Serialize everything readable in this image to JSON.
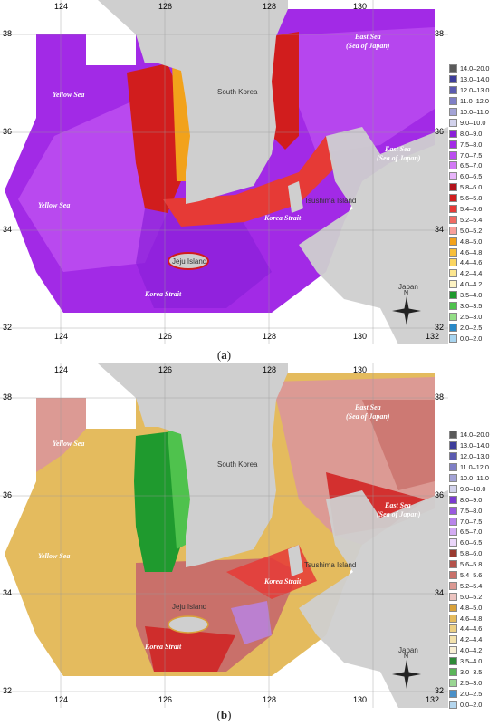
{
  "panels": [
    {
      "caption": "(a)",
      "caption_letter": "a",
      "lon_ticks": [
        "124",
        "126",
        "128",
        "130",
        "132"
      ],
      "lat_ticks": [
        "38",
        "36",
        "34",
        "32"
      ],
      "labels": {
        "yellow_sea_1": "Yellow Sea",
        "yellow_sea_2": "Yellow Sea",
        "south_korea": "South Korea",
        "east_sea_1": "East Sea",
        "east_sea_1b": "(Sea of Japan)",
        "east_sea_2": "East Sea",
        "east_sea_2b": "(Sea of Japan)",
        "tsushima": "Tsushima Island",
        "korea_strait_1": "Korea Strait",
        "jeju": "Jeju Island",
        "korea_strait_2": "Korea Strait",
        "japan": "Japan",
        "north": "N"
      },
      "legend": [
        {
          "label": "14.0–20.0",
          "color": "#5a5a5a"
        },
        {
          "label": "13.0–14.0",
          "color": "#3d3d9a"
        },
        {
          "label": "12.0–13.0",
          "color": "#5b5bb0"
        },
        {
          "label": "11.0–12.0",
          "color": "#7f7fc6"
        },
        {
          "label": "10.0–11.0",
          "color": "#a3a3d6"
        },
        {
          "label": "9.0–10.0",
          "color": "#d2d2ec"
        },
        {
          "label": "8.0–9.0",
          "color": "#8a1fd8"
        },
        {
          "label": "7.5–8.0",
          "color": "#a22ae6"
        },
        {
          "label": "7.0–7.5",
          "color": "#bb4df0"
        },
        {
          "label": "6.5–7.0",
          "color": "#d27af5"
        },
        {
          "label": "6.0–6.5",
          "color": "#e7b4fa"
        },
        {
          "label": "5.8–6.0",
          "color": "#b3121a"
        },
        {
          "label": "5.6–5.8",
          "color": "#d11d1d"
        },
        {
          "label": "5.4–5.6",
          "color": "#e63a36"
        },
        {
          "label": "5.2–5.4",
          "color": "#f06a62"
        },
        {
          "label": "5.0–5.2",
          "color": "#f8a09a"
        },
        {
          "label": "4.8–5.0",
          "color": "#f2a21b"
        },
        {
          "label": "4.6–4.8",
          "color": "#f7bf3a"
        },
        {
          "label": "4.4–4.6",
          "color": "#fad561"
        },
        {
          "label": "4.2–4.4",
          "color": "#fce68f"
        },
        {
          "label": "4.0–4.2",
          "color": "#fdf3c3"
        },
        {
          "label": "3.5–4.0",
          "color": "#1f9a2e"
        },
        {
          "label": "3.0–3.5",
          "color": "#4fc24d"
        },
        {
          "label": "2.5–3.0",
          "color": "#93de86"
        },
        {
          "label": "2.0–2.5",
          "color": "#2a8ac8"
        },
        {
          "label": "0.0–2.0",
          "color": "#a7d4ef"
        }
      ]
    },
    {
      "caption": "(b)",
      "caption_letter": "b",
      "lon_ticks": [
        "124",
        "126",
        "128",
        "130",
        "132"
      ],
      "lat_ticks": [
        "38",
        "36",
        "34",
        "32"
      ],
      "labels": {
        "yellow_sea_1": "Yellow Sea",
        "yellow_sea_2": "Yellow Sea",
        "south_korea": "South Korea",
        "east_sea_1": "East Sea",
        "east_sea_1b": "(Sea of Japan)",
        "east_sea_2": "East Sea",
        "east_sea_2b": "(Sea of Japan)",
        "tsushima": "Tsushima Island",
        "korea_strait_1": "Korea Strait",
        "jeju": "Jeju Island",
        "korea_strait_2": "Korea Strait",
        "japan": "Japan",
        "north": "N"
      },
      "legend": [
        {
          "label": "14.0–20.0",
          "color": "#5a5a5a"
        },
        {
          "label": "13.0–14.0",
          "color": "#3d3d9a"
        },
        {
          "label": "12.0–13.0",
          "color": "#5b5bb0"
        },
        {
          "label": "11.0–12.0",
          "color": "#7f7fc6"
        },
        {
          "label": "10.0–11.0",
          "color": "#a3a3d6"
        },
        {
          "label": "9.0–10.0",
          "color": "#d2d2ec"
        },
        {
          "label": "8.0–9.0",
          "color": "#7a3ad0"
        },
        {
          "label": "7.5–8.0",
          "color": "#9a5ae0"
        },
        {
          "label": "7.0–7.5",
          "color": "#b884ea"
        },
        {
          "label": "6.5–7.0",
          "color": "#d3acf3"
        },
        {
          "label": "6.0–6.5",
          "color": "#ead6fa"
        },
        {
          "label": "5.8–6.0",
          "color": "#9a3a30"
        },
        {
          "label": "5.6–5.8",
          "color": "#b4524a"
        },
        {
          "label": "5.4–5.6",
          "color": "#c9706a"
        },
        {
          "label": "5.2–5.4",
          "color": "#dc9a94"
        },
        {
          "label": "5.0–5.2",
          "color": "#ecc4c0"
        },
        {
          "label": "4.8–5.0",
          "color": "#d9a23a"
        },
        {
          "label": "4.6–4.8",
          "color": "#e4bb5e"
        },
        {
          "label": "4.4–4.6",
          "color": "#ecd085"
        },
        {
          "label": "4.2–4.4",
          "color": "#f3e2ad"
        },
        {
          "label": "4.0–4.2",
          "color": "#f9f0d6"
        },
        {
          "label": "3.5–4.0",
          "color": "#2e8a38"
        },
        {
          "label": "3.0–3.5",
          "color": "#5bb55a"
        },
        {
          "label": "2.5–3.0",
          "color": "#9ad693"
        },
        {
          "label": "2.0–2.5",
          "color": "#4a90c8"
        },
        {
          "label": "0.0–2.0",
          "color": "#b4d6ee"
        }
      ]
    }
  ]
}
